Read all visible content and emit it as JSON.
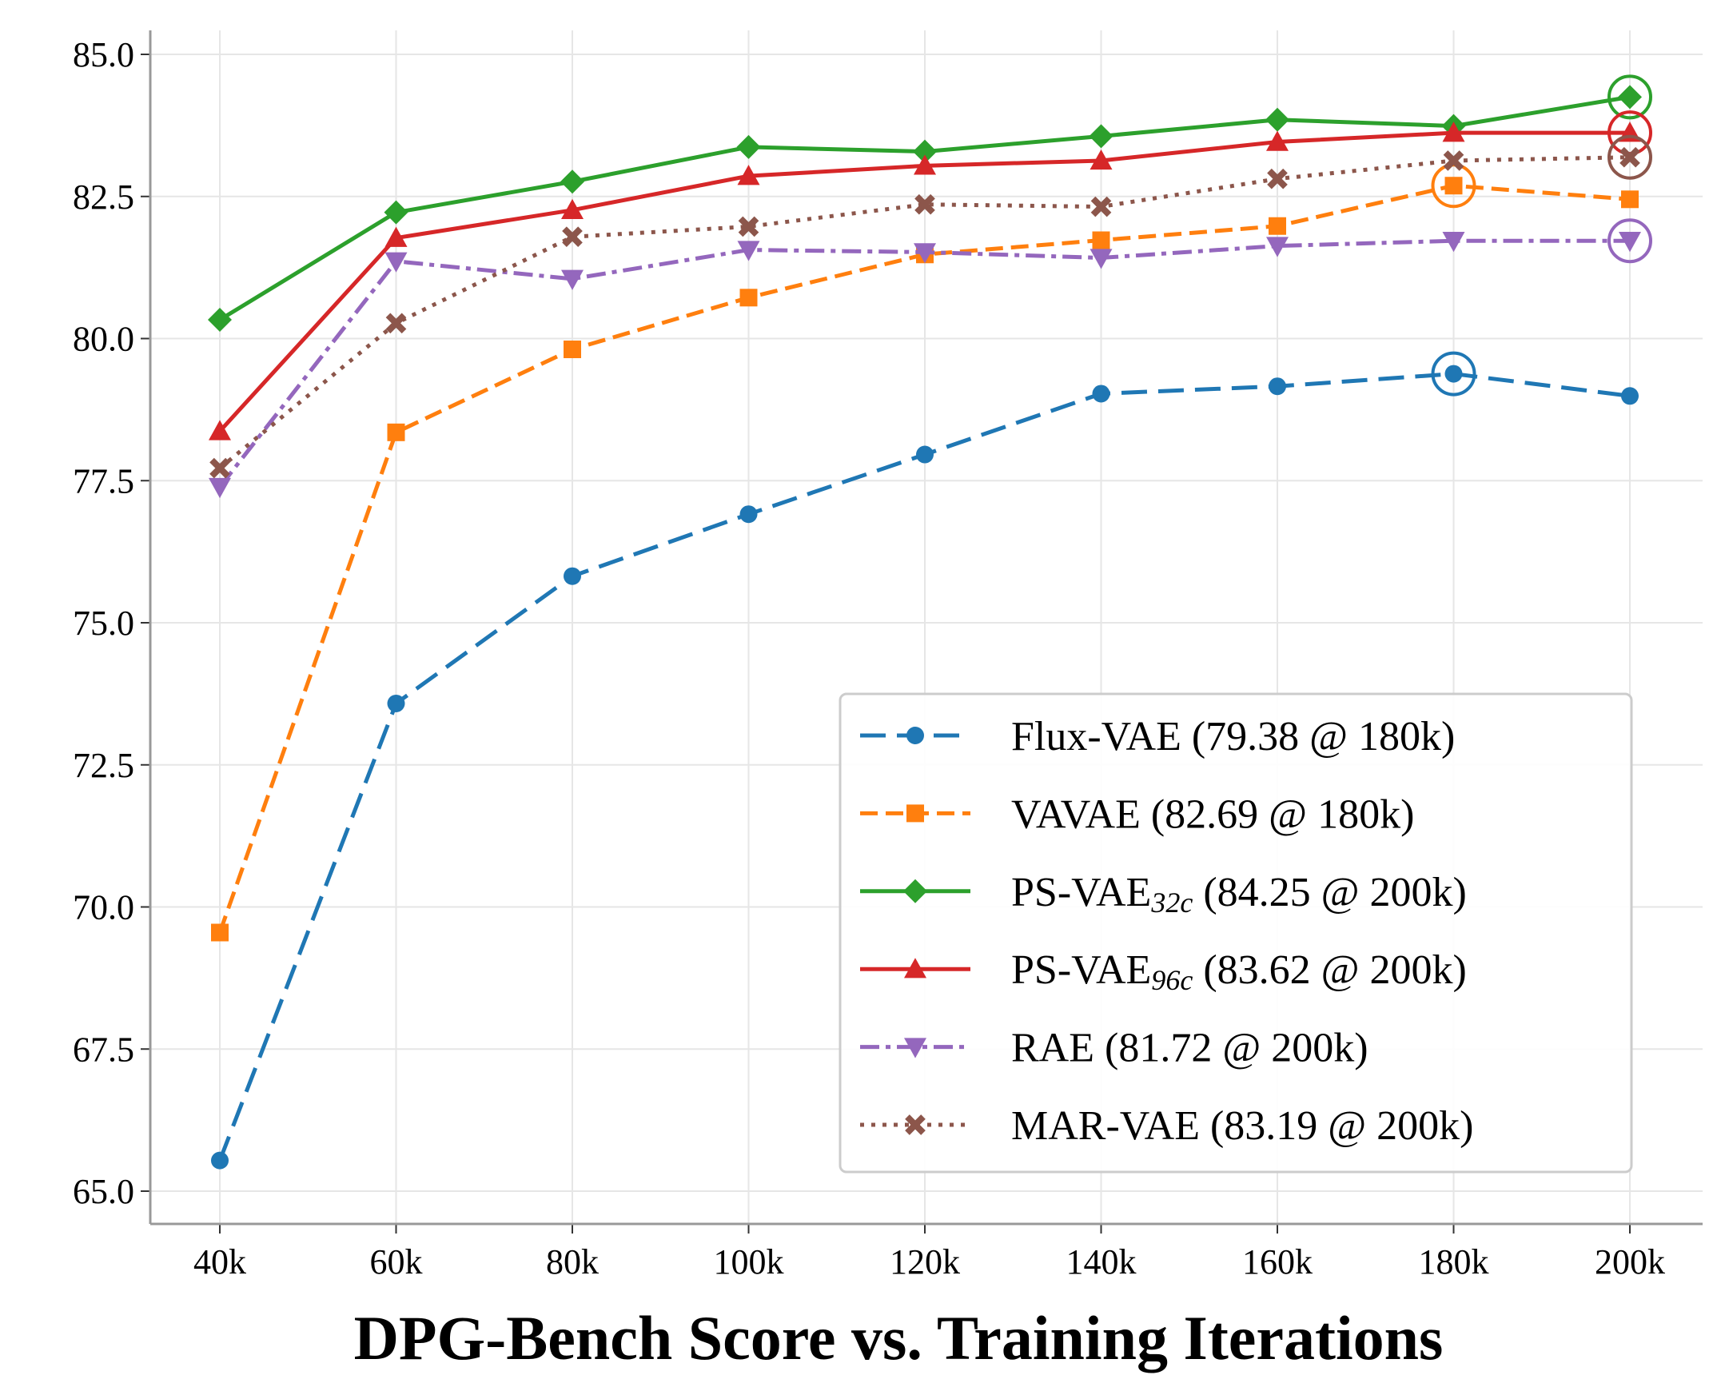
{
  "chart_data": {
    "type": "line",
    "title": "DPG-Bench Score vs. Training Iterations",
    "xlabel": "",
    "ylabel": "",
    "categories": [
      "40k",
      "60k",
      "80k",
      "100k",
      "120k",
      "140k",
      "160k",
      "180k",
      "200k"
    ],
    "ylim": [
      64.4,
      85.4
    ],
    "yticks": [
      "65.0",
      "67.5",
      "70.0",
      "72.5",
      "75.0",
      "77.5",
      "80.0",
      "82.5",
      "85.0"
    ],
    "grid": true,
    "legend_position": "bottom-right",
    "series": [
      {
        "name": "Flux-VAE",
        "label": "Flux-VAE (79.38 @ 180k)",
        "color": "#1f77b4",
        "dash": "dashed-long",
        "marker": "circle",
        "values": [
          65.54,
          73.58,
          75.82,
          76.91,
          77.96,
          79.03,
          79.16,
          79.38,
          78.99
        ],
        "best_index": 7
      },
      {
        "name": "VAVAE",
        "label": "VAVAE (82.69 @ 180k)",
        "color": "#ff7f0e",
        "dash": "dashed",
        "marker": "square",
        "values": [
          69.55,
          78.35,
          79.81,
          80.72,
          81.48,
          81.73,
          81.98,
          82.69,
          82.45
        ],
        "best_index": 7
      },
      {
        "name": "PS-VAE",
        "subscript": "32c",
        "label_pre": "PS-VAE",
        "label_post": " (84.25 @ 200k)",
        "color": "#2ca02c",
        "dash": "solid",
        "marker": "diamond",
        "values": [
          80.33,
          82.22,
          82.76,
          83.37,
          83.29,
          83.56,
          83.85,
          83.74,
          84.25
        ],
        "best_index": 8
      },
      {
        "name": "PS-VAE",
        "subscript": "96c",
        "label_pre": "PS-VAE",
        "label_post": " (83.62 @ 200k)",
        "color": "#d62728",
        "dash": "solid",
        "marker": "triangle-up",
        "values": [
          78.37,
          81.77,
          82.26,
          82.86,
          83.04,
          83.13,
          83.46,
          83.62,
          83.62
        ],
        "best_index": 8
      },
      {
        "name": "RAE",
        "label": "RAE (81.72 @ 200k)",
        "color": "#9467bd",
        "dash": "dashdot",
        "marker": "triangle-down",
        "values": [
          77.39,
          81.36,
          81.05,
          81.56,
          81.52,
          81.42,
          81.63,
          81.72,
          81.72
        ],
        "best_index": 8
      },
      {
        "name": "MAR-VAE",
        "label": "MAR-VAE (83.19 @ 200k)",
        "color": "#8c564b",
        "dash": "dotted",
        "marker": "x",
        "values": [
          77.72,
          80.27,
          81.79,
          81.97,
          82.36,
          82.32,
          82.81,
          83.13,
          83.19
        ],
        "best_index": 8
      }
    ]
  }
}
